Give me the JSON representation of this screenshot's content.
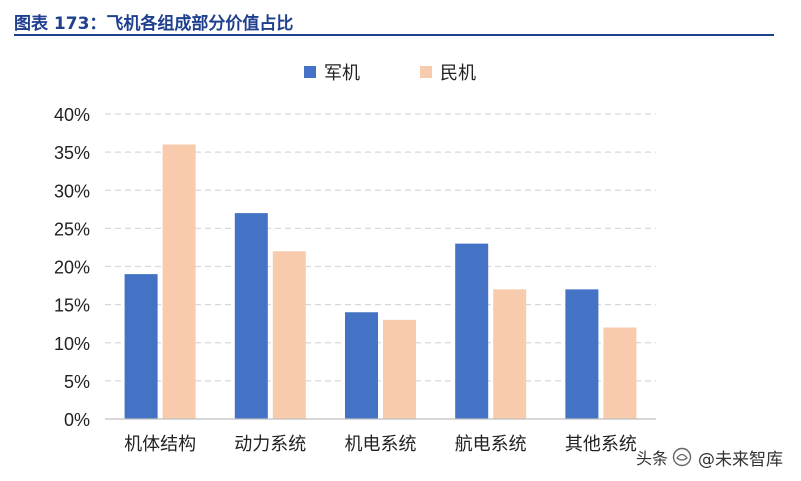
{
  "figure": {
    "title": "图表 173：飞机各组成部分价值占比"
  },
  "watermark": {
    "prefix": "头条",
    "handle": "@未来智库"
  },
  "chart_data": {
    "type": "bar",
    "categories": [
      "机体结构",
      "动力系统",
      "机电系统",
      "航电系统",
      "其他系统"
    ],
    "series": [
      {
        "name": "军机",
        "color": "#4472c4",
        "values": [
          19,
          27,
          14,
          23,
          17
        ]
      },
      {
        "name": "民机",
        "color": "#f8cbad",
        "values": [
          36,
          22,
          13,
          17,
          12
        ]
      }
    ],
    "ylim": [
      0,
      40
    ],
    "yticks": [
      "0%",
      "5%",
      "10%",
      "15%",
      "20%",
      "25%",
      "30%",
      "35%",
      "40%"
    ],
    "ytick_values": [
      0,
      5,
      10,
      15,
      20,
      25,
      30,
      35,
      40
    ],
    "grid": true,
    "legend": "top-center",
    "xlabel": "",
    "ylabel": ""
  }
}
